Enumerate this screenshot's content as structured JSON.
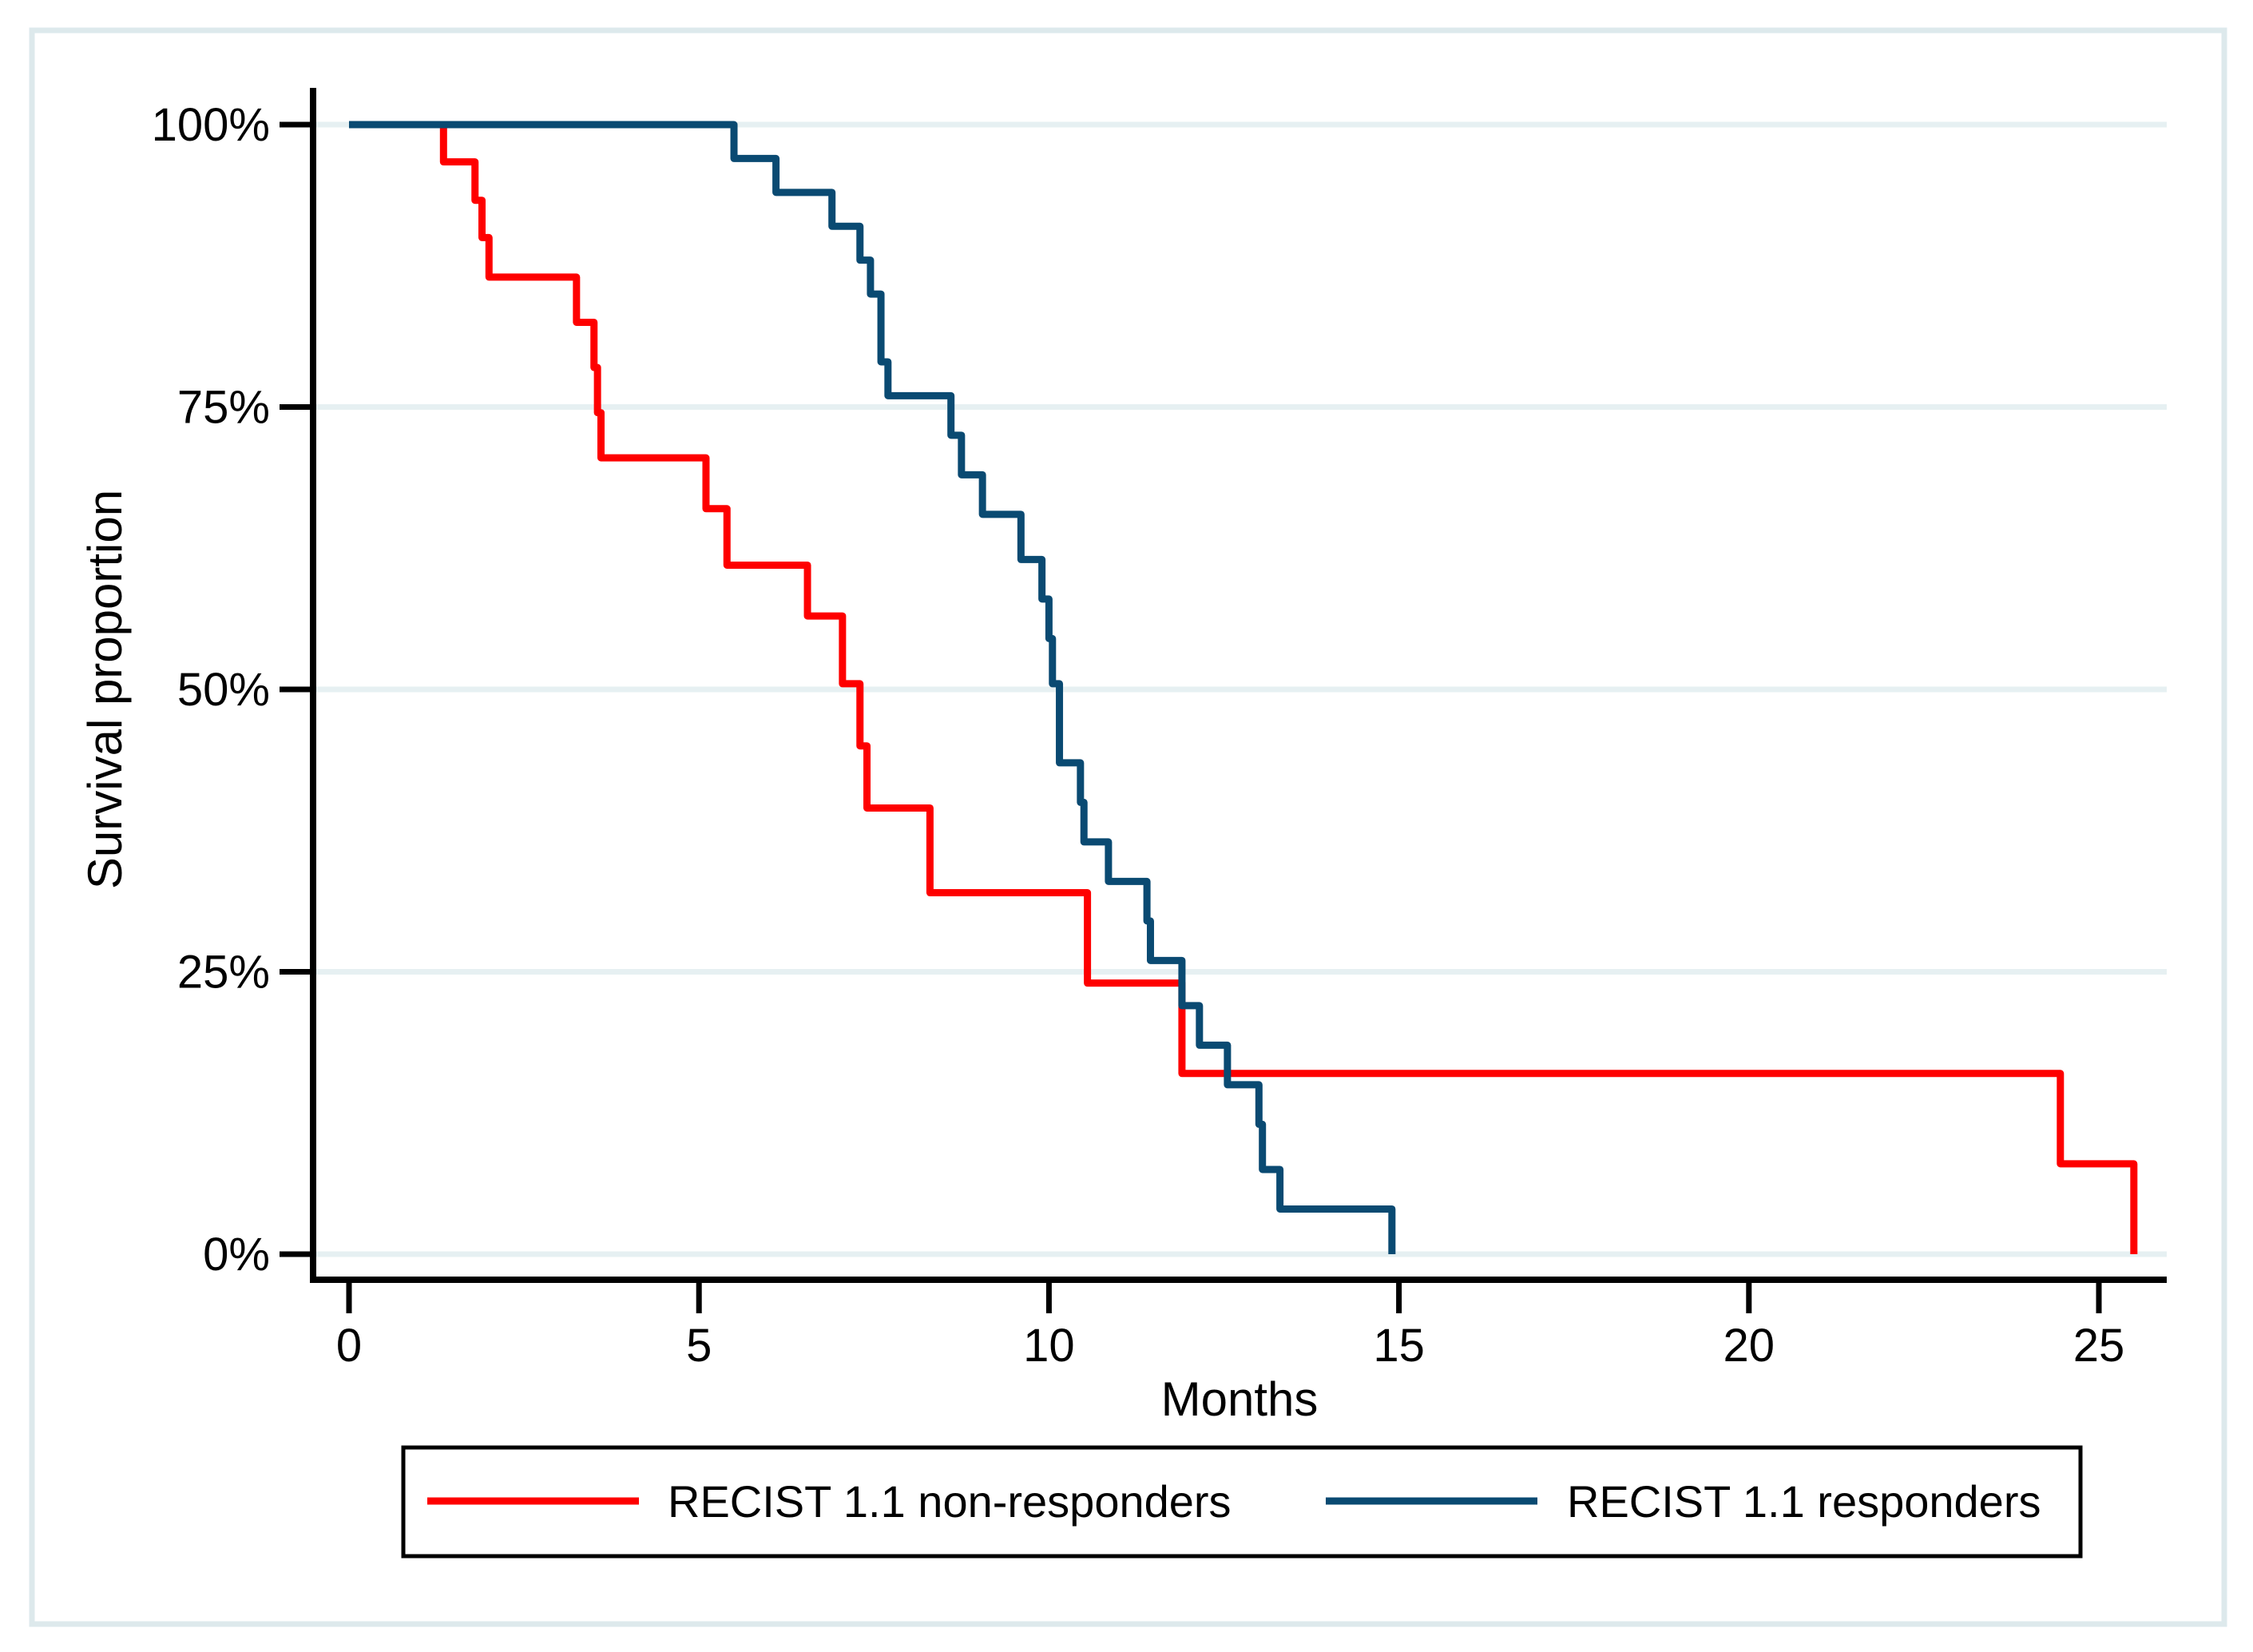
{
  "figure": {
    "background": "#ffffff",
    "frame_color": "#dde9ec",
    "axis_color": "#000000",
    "gridline_color": "#e6f0f2",
    "y_axis_title": "Survival proportion",
    "x_axis_title": "Months",
    "legend": {
      "items": [
        {
          "label": "RECIST 1.1 non-responders",
          "color": "#fe0000"
        },
        {
          "label": "RECIST 1.1 responders",
          "color": "#0a4a72"
        }
      ]
    }
  },
  "chart_data": {
    "type": "line",
    "subtype": "kaplan-meier-step-function",
    "title": "",
    "xlabel": "Months",
    "ylabel": "Survival proportion",
    "xlim": [
      0,
      26
    ],
    "ylim": [
      0,
      100
    ],
    "grid": "horizontal",
    "legend_position": "bottom",
    "x_ticks": [
      {
        "value": 0,
        "label": "0"
      },
      {
        "value": 5,
        "label": "5"
      },
      {
        "value": 10,
        "label": "10"
      },
      {
        "value": 15,
        "label": "15"
      },
      {
        "value": 20,
        "label": "20"
      },
      {
        "value": 25,
        "label": "25"
      }
    ],
    "y_ticks": [
      {
        "value": 100,
        "label": "100%"
      },
      {
        "value": 75,
        "label": "75%"
      },
      {
        "value": 50,
        "label": "50%"
      },
      {
        "value": 25,
        "label": "25%"
      },
      {
        "value": 0,
        "label": "0%"
      }
    ],
    "series": [
      {
        "name": "RECIST 1.1 non-responders",
        "color": "#fe0000",
        "start": [
          0,
          100
        ],
        "steps": [
          [
            1.35,
            96.7
          ],
          [
            1.8,
            93.3
          ],
          [
            1.9,
            90.0
          ],
          [
            2.0,
            86.5
          ],
          [
            3.25,
            82.5
          ],
          [
            3.5,
            78.5
          ],
          [
            3.55,
            74.5
          ],
          [
            3.6,
            70.5
          ],
          [
            5.1,
            66.0
          ],
          [
            5.4,
            61.0
          ],
          [
            6.55,
            56.5
          ],
          [
            7.05,
            50.5
          ],
          [
            7.3,
            45.0
          ],
          [
            7.4,
            39.5
          ],
          [
            8.3,
            32.0
          ],
          [
            10.55,
            24.0
          ],
          [
            11.9,
            16.0
          ],
          [
            24.45,
            8.0
          ],
          [
            25.5,
            0
          ]
        ]
      },
      {
        "name": "RECIST 1.1 responders",
        "color": "#0a4a72",
        "start": [
          0,
          100
        ],
        "steps": [
          [
            5.5,
            97.0
          ],
          [
            6.1,
            94.0
          ],
          [
            6.9,
            91.0
          ],
          [
            7.3,
            88.0
          ],
          [
            7.45,
            85.0
          ],
          [
            7.6,
            79.0
          ],
          [
            7.7,
            76.0
          ],
          [
            8.6,
            72.5
          ],
          [
            8.75,
            69.0
          ],
          [
            9.05,
            65.5
          ],
          [
            9.6,
            61.5
          ],
          [
            9.9,
            58.0
          ],
          [
            10.0,
            54.5
          ],
          [
            10.05,
            50.5
          ],
          [
            10.15,
            43.5
          ],
          [
            10.45,
            40.0
          ],
          [
            10.5,
            36.5
          ],
          [
            10.85,
            33.0
          ],
          [
            11.4,
            29.5
          ],
          [
            11.45,
            26.0
          ],
          [
            11.9,
            22.0
          ],
          [
            12.15,
            18.5
          ],
          [
            12.55,
            15.0
          ],
          [
            13.0,
            11.5
          ],
          [
            13.05,
            7.5
          ],
          [
            13.3,
            4.0
          ],
          [
            14.9,
            0
          ]
        ]
      }
    ]
  }
}
